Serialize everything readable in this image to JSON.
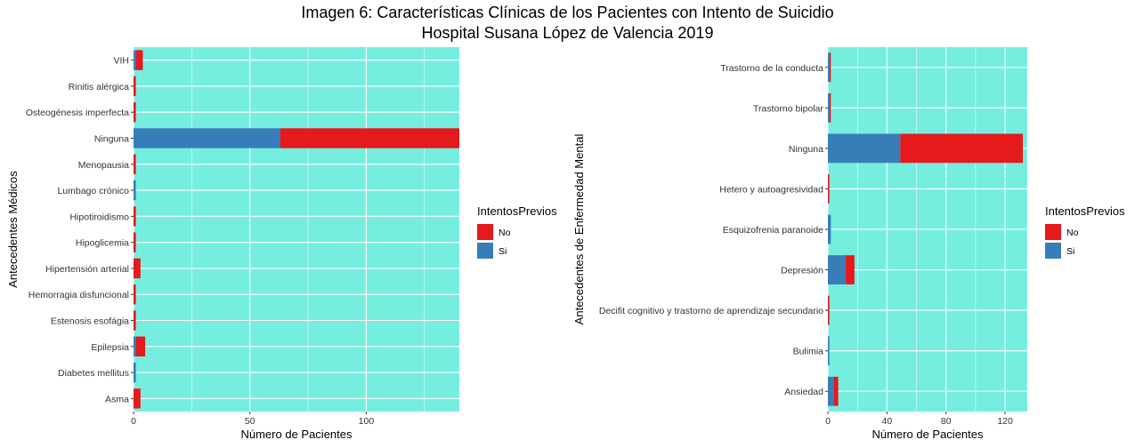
{
  "title": "Imagen 6: Características Clínicas de los Pacientes con Intento de Suicidio",
  "subtitle": "Hospital Susana López de Valencia 2019",
  "colors": {
    "panel": "#76EEDF",
    "grid": "#FFFFFF",
    "No": "#E41A1C",
    "Si": "#377EB8"
  },
  "chart_data": [
    {
      "type": "bar",
      "orientation": "horizontal",
      "stacked": true,
      "xlabel": "Número de Pacientes",
      "ylabel": "Antecedentes Médicos",
      "xlim": [
        0,
        140
      ],
      "xticks": [
        0,
        50,
        100
      ],
      "categories": [
        "VIH",
        "Rinitis alérgica",
        "Osteogénesis imperfecta",
        "Ninguna",
        "Menopausia",
        "Lumbago crónico",
        "Hipotiroidismo",
        "Hipoglicemia",
        "Hipertensión arterial",
        "Hemorragia disfuncional",
        "Estenosis esofágia",
        "Epilepsia",
        "Diabetes mellitus",
        "Asma"
      ],
      "series": [
        {
          "name": "Si",
          "values": [
            1,
            0,
            0,
            63,
            0,
            1,
            0,
            0,
            0,
            0,
            0,
            1,
            1,
            0
          ]
        },
        {
          "name": "No",
          "values": [
            3,
            1,
            1,
            77,
            1,
            0,
            1,
            1,
            3,
            1,
            1,
            4,
            0,
            3
          ]
        }
      ],
      "legend": {
        "title": "IntentosPrevios",
        "entries": [
          "No",
          "Si"
        ],
        "position": "right"
      },
      "grid": true
    },
    {
      "type": "bar",
      "orientation": "horizontal",
      "stacked": true,
      "xlabel": "Número de Pacientes",
      "ylabel": "Antecedentes de Enfermedad Mental",
      "xlim": [
        0,
        135
      ],
      "xticks": [
        0,
        40,
        80,
        120
      ],
      "categories": [
        "Trastorno de la conducta",
        "Trastorno bipolar",
        "Ninguna",
        "Hetero y autoagresividad",
        "Esquizofrenia paranoide",
        "Depresión",
        "Decifit cognitivo y trastorno de aprendizaje secundario",
        "Bulimia",
        "Ansiedad"
      ],
      "series": [
        {
          "name": "Si",
          "values": [
            1,
            1,
            49,
            0,
            2,
            12,
            0,
            1,
            4
          ]
        },
        {
          "name": "No",
          "values": [
            1,
            1,
            83,
            1,
            0,
            6,
            1,
            0,
            3
          ]
        }
      ],
      "legend": {
        "title": "IntentosPrevios",
        "entries": [
          "No",
          "Si"
        ],
        "position": "right"
      },
      "grid": true
    }
  ]
}
